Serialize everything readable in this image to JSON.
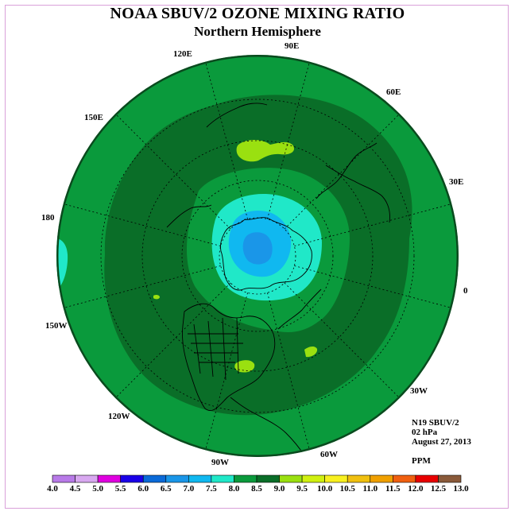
{
  "title": "NOAA SBUV/2 OZONE MIXING RATIO",
  "subtitle": "Northern Hemisphere",
  "longitude_labels": {
    "e120": "120E",
    "e90": "90E",
    "e60": "60E",
    "e150": "150E",
    "e30": "30E",
    "d180": "180",
    "d0": "0",
    "w150": "150W",
    "w30": "30W",
    "w120": "120W",
    "w60": "60W",
    "w90": "90W"
  },
  "info": {
    "instrument": "N19 SBUV/2",
    "level": "02 hPa",
    "date": "August 27, 2013",
    "units": "PPM"
  },
  "colorbar": {
    "labels": [
      "4.0",
      "4.5",
      "5.0",
      "5.5",
      "6.0",
      "6.5",
      "7.0",
      "7.5",
      "8.0",
      "8.5",
      "9.0",
      "9.5",
      "10.0",
      "10.5",
      "11.0",
      "11.5",
      "12.0",
      "12.5",
      "13.0"
    ],
    "colors": [
      "#b87ae8",
      "#d8a8f0",
      "#e000e0",
      "#1a00e8",
      "#0a6ad8",
      "#1a96e8",
      "#10b8f0",
      "#20e8c8",
      "#0a9a3c",
      "#0a6e28",
      "#9ae010",
      "#d0f010",
      "#f8f020",
      "#f0c010",
      "#f0a000",
      "#f06010",
      "#e80000",
      "#8a5a3a"
    ]
  },
  "chart_data": {
    "type": "heatmap",
    "projection": "north polar stereographic",
    "units": "PPM",
    "level_hpa": 2,
    "color_levels": [
      4.0,
      4.5,
      5.0,
      5.5,
      6.0,
      6.5,
      7.0,
      7.5,
      8.0,
      8.5,
      9.0,
      9.5,
      10.0,
      10.5,
      11.0,
      11.5,
      12.0,
      12.5,
      13.0
    ],
    "regions": [
      {
        "range": "8.0-8.5",
        "where": "outer hemisphere band"
      },
      {
        "range": "8.5-9.0",
        "where": "mid-latitude ring"
      },
      {
        "range": "8.0-8.5",
        "where": "inner ring around pole"
      },
      {
        "range": "7.5-8.0",
        "where": "polar region and patch near 180"
      },
      {
        "range": "7.0-7.5",
        "where": "near pole"
      },
      {
        "range": "6.5-7.0",
        "where": "pole center"
      },
      {
        "range": "9.0-9.5",
        "where": "small patches near 90E, eastern North America, Pacific"
      }
    ]
  }
}
